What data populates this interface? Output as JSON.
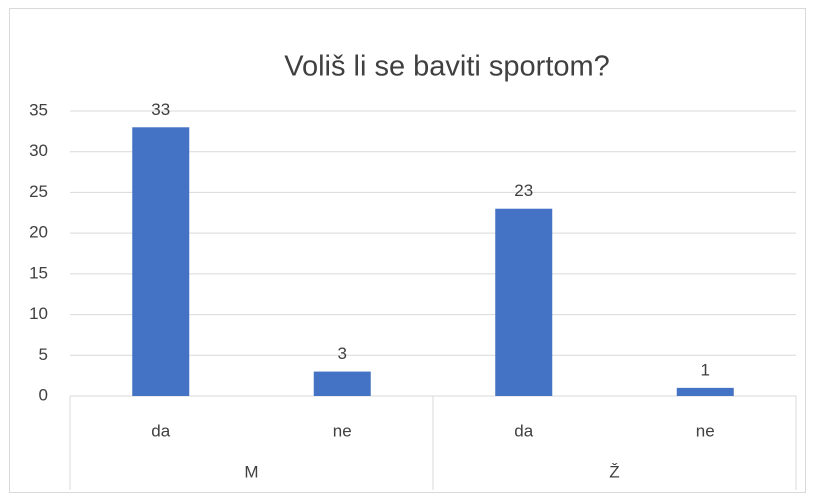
{
  "chart_data": {
    "type": "bar",
    "title": "Voliš li se baviti sportom?",
    "categories": [
      "da",
      "ne",
      "da",
      "ne"
    ],
    "groups": [
      "M",
      "Ž"
    ],
    "values": [
      33,
      3,
      23,
      1
    ],
    "color": "#4472c4",
    "ylim": [
      0,
      35
    ],
    "yticks": [
      0,
      5,
      10,
      15,
      20,
      25,
      30,
      35
    ],
    "grid": true,
    "data_labels": true
  }
}
